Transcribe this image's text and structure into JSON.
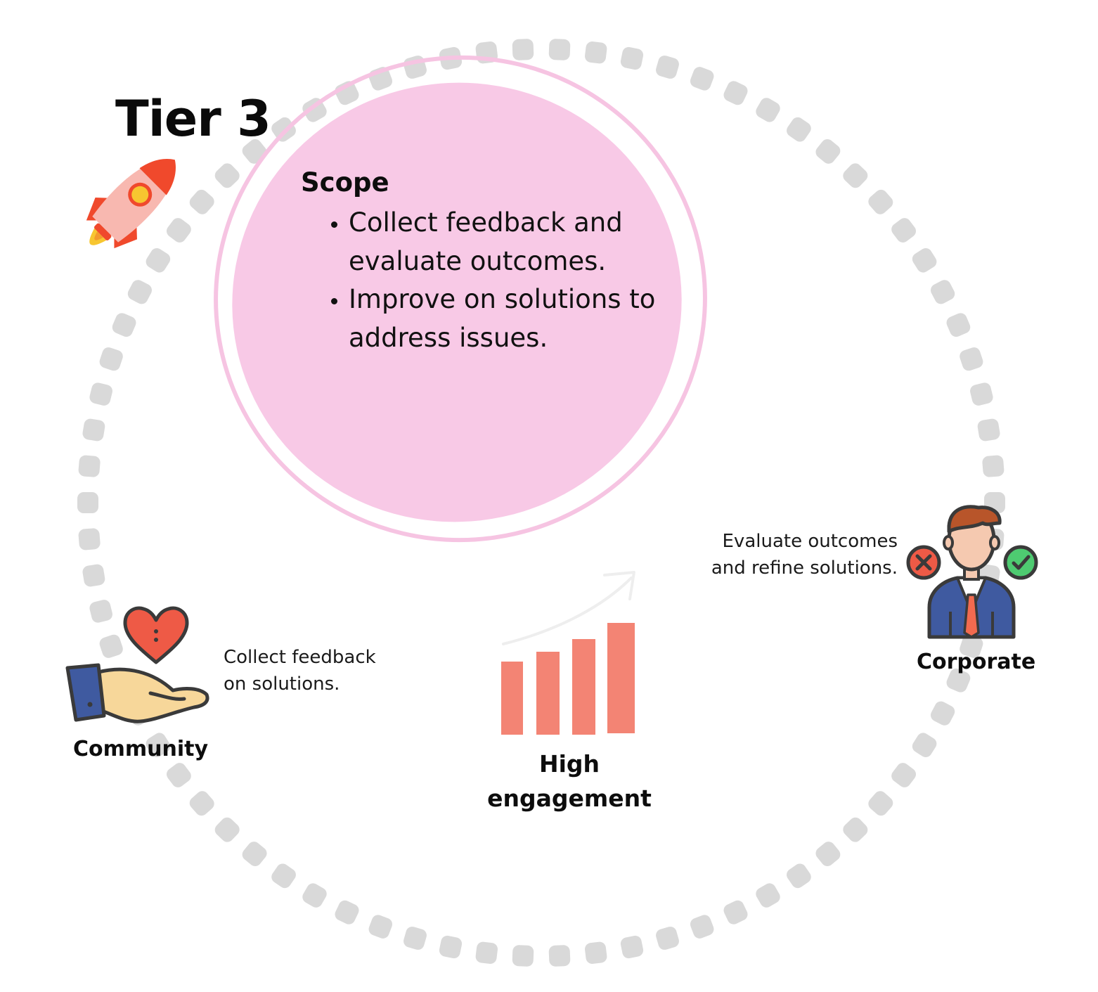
{
  "title": "Tier 3",
  "scope": {
    "heading": "Scope",
    "items": [
      "Collect feedback and evaluate outcomes.",
      "Improve on solutions to address issues."
    ]
  },
  "community": {
    "label": "Community",
    "description": "Collect feedback on solutions."
  },
  "corporate": {
    "label": "Corporate",
    "description": "Evaluate outcomes and refine solutions."
  },
  "engagement": {
    "label": "High engagement"
  },
  "icons": {
    "title_icon": "rocket-icon",
    "community_icon": "hand-holding-heart-icon",
    "corporate_icon": "businessman-decision-icon",
    "engagement_icon": "rising-bar-chart-icon"
  },
  "colors": {
    "dotted_ring": "#d9d9d9",
    "scope_fill": "#f8c9e6",
    "scope_outline": "#f6c4e2",
    "bars": "#f38474",
    "heart": "#ee5a46",
    "rocket_body": "#f8b8b0",
    "rocket_fin": "#f0492c",
    "rocket_window": "#f7c630",
    "hand_skin": "#f7d79a",
    "sleeve": "#3f5aa0",
    "suit": "#3f5aa0",
    "tie": "#f26a4f",
    "cross_badge": "#ee5a46",
    "check_badge": "#4ecb71"
  }
}
